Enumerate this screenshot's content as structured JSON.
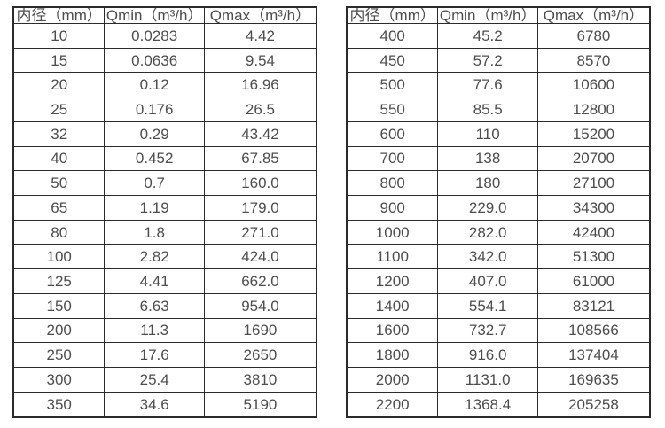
{
  "page": {
    "background": "#ffffff",
    "text_color": "#4d4d4d",
    "border_color": "#2b2b2b"
  },
  "chart_data": [
    {
      "type": "table",
      "title": "",
      "columns": [
        "内径（mm）",
        "Qmin（m³/h）",
        "Qmax（m³/h）"
      ],
      "rows": [
        [
          "10",
          "0.0283",
          "4.42"
        ],
        [
          "15",
          "0.0636",
          "9.54"
        ],
        [
          "20",
          "0.12",
          "16.96"
        ],
        [
          "25",
          "0.176",
          "26.5"
        ],
        [
          "32",
          "0.29",
          "43.42"
        ],
        [
          "40",
          "0.452",
          "67.85"
        ],
        [
          "50",
          "0.7",
          "160.0"
        ],
        [
          "65",
          "1.19",
          "179.0"
        ],
        [
          "80",
          "1.8",
          "271.0"
        ],
        [
          "100",
          "2.82",
          "424.0"
        ],
        [
          "125",
          "4.41",
          "662.0"
        ],
        [
          "150",
          "6.63",
          "954.0"
        ],
        [
          "200",
          "11.3",
          "1690"
        ],
        [
          "250",
          "17.6",
          "2650"
        ],
        [
          "300",
          "25.4",
          "3810"
        ],
        [
          "350",
          "34.6",
          "5190"
        ]
      ]
    },
    {
      "type": "table",
      "title": "",
      "columns": [
        "内径（mm）",
        "Qmin（m³/h）",
        "Qmax（m³/h）"
      ],
      "rows": [
        [
          "400",
          "45.2",
          "6780"
        ],
        [
          "450",
          "57.2",
          "8570"
        ],
        [
          "500",
          "77.6",
          "10600"
        ],
        [
          "550",
          "85.5",
          "12800"
        ],
        [
          "600",
          "110",
          "15200"
        ],
        [
          "700",
          "138",
          "20700"
        ],
        [
          "800",
          "180",
          "27100"
        ],
        [
          "900",
          "229.0",
          "34300"
        ],
        [
          "1000",
          "282.0",
          "42400"
        ],
        [
          "1100",
          "342.0",
          "51300"
        ],
        [
          "1200",
          "407.0",
          "61000"
        ],
        [
          "1400",
          "554.1",
          "83121"
        ],
        [
          "1600",
          "732.7",
          "108566"
        ],
        [
          "1800",
          "916.0",
          "137404"
        ],
        [
          "2000",
          "1131.0",
          "169635"
        ],
        [
          "2200",
          "1368.4",
          "205258"
        ]
      ]
    }
  ]
}
